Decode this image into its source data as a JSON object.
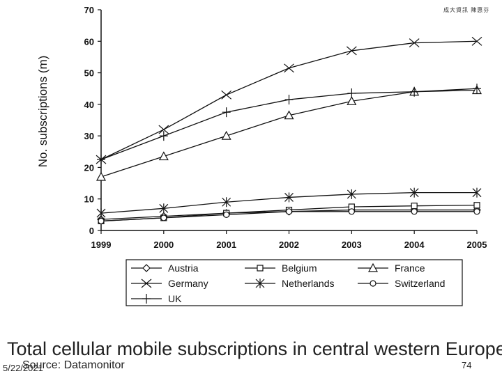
{
  "watermark": "成大資訊 陳惠芬",
  "caption": {
    "title": "Total cellular mobile subscriptions in central western Europe",
    "source": "Source: Datamonitor",
    "date": "5/22/2021",
    "page_number": "74"
  },
  "chart_data": {
    "type": "line",
    "title": "",
    "xlabel": "",
    "ylabel": "No. subscriptions (m)",
    "x": [
      "1999",
      "2000",
      "2001",
      "2002",
      "2003",
      "2004",
      "2005"
    ],
    "ylim": [
      0,
      70
    ],
    "yticks": [
      0,
      10,
      20,
      30,
      40,
      50,
      60,
      70
    ],
    "grid": false,
    "legend_position": "bottom",
    "series": [
      {
        "name": "Austria",
        "marker": "diamond",
        "values": [
          3.5,
          4.5,
          5.5,
          6,
          6.5,
          6.5,
          6.5
        ]
      },
      {
        "name": "Belgium",
        "marker": "square",
        "values": [
          3,
          4,
          5.5,
          6.5,
          7.5,
          7.8,
          8
        ]
      },
      {
        "name": "France",
        "marker": "triangle",
        "values": [
          17,
          23.5,
          30,
          36.5,
          41,
          44,
          44.5
        ]
      },
      {
        "name": "Germany",
        "marker": "x",
        "values": [
          22.5,
          32,
          43,
          51.5,
          57,
          59.5,
          60
        ]
      },
      {
        "name": "Netherlands",
        "marker": "asterisk",
        "values": [
          5.5,
          7,
          9,
          10.5,
          11.5,
          12,
          12
        ]
      },
      {
        "name": "Switzerland",
        "marker": "circle",
        "values": [
          3,
          4,
          5,
          6,
          6,
          6,
          6
        ]
      },
      {
        "name": "UK",
        "marker": "plus",
        "values": [
          22.5,
          30,
          37.5,
          41.5,
          43.5,
          44,
          45
        ]
      }
    ]
  }
}
